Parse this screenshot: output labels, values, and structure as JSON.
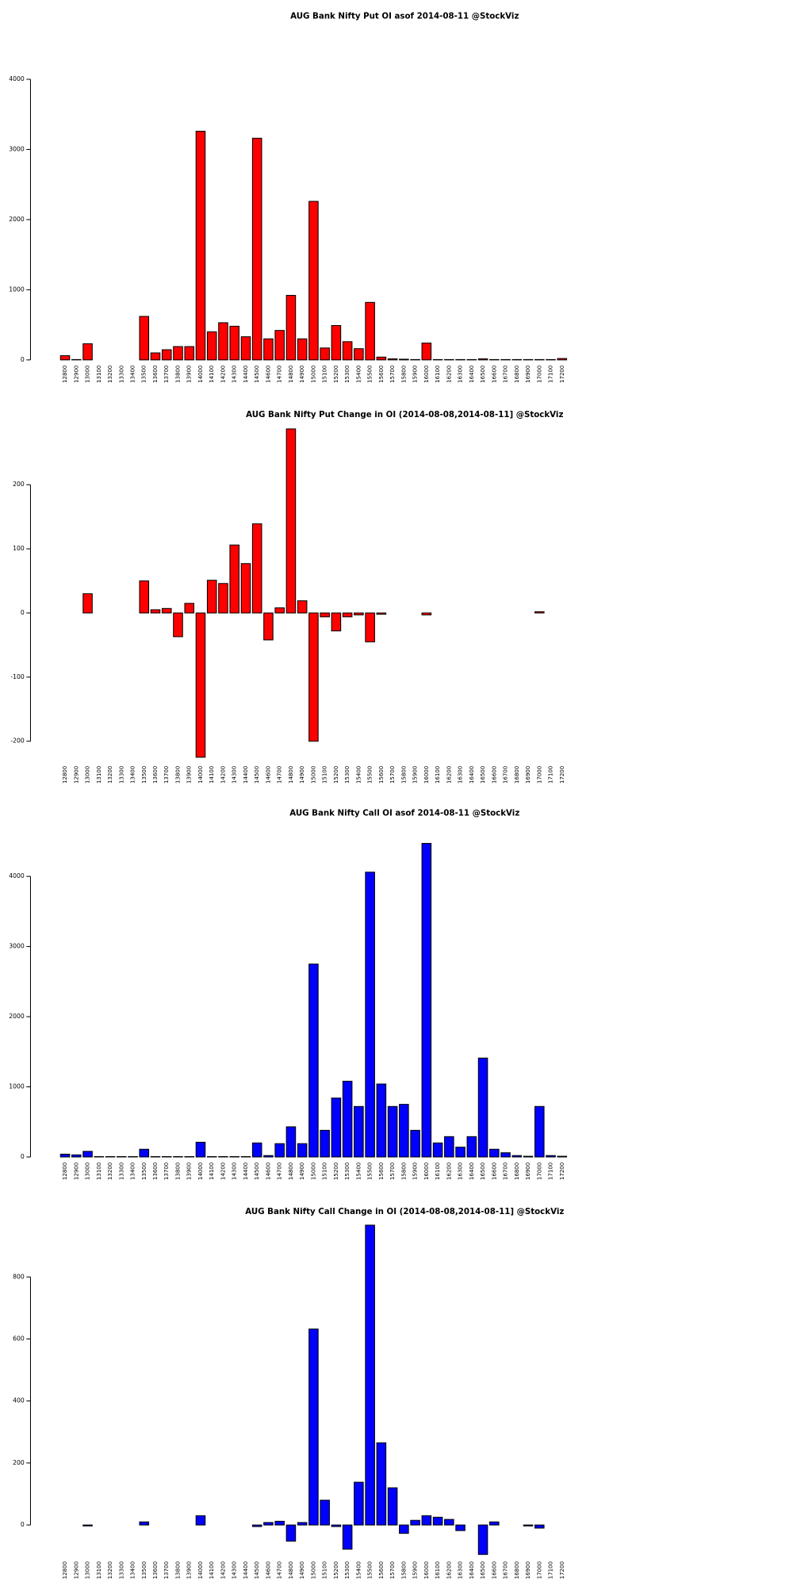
{
  "chart_data": [
    {
      "type": "bar",
      "title": "AUG Bank Nifty Put OI asof 2014-08-11 @StockViz",
      "color": "#ff0000",
      "categories": [
        "12800",
        "12900",
        "13000",
        "13100",
        "13200",
        "13300",
        "13400",
        "13500",
        "13600",
        "13700",
        "13800",
        "13900",
        "14000",
        "14100",
        "14200",
        "14300",
        "14400",
        "14500",
        "14600",
        "14700",
        "14800",
        "14900",
        "15000",
        "15100",
        "15200",
        "15300",
        "15400",
        "15500",
        "15600",
        "15700",
        "15800",
        "15900",
        "16000",
        "16100",
        "16200",
        "16300",
        "16400",
        "16500",
        "16600",
        "16700",
        "16800",
        "16900",
        "17000",
        "17100",
        "17200"
      ],
      "values": [
        60,
        5,
        230,
        0,
        0,
        0,
        0,
        620,
        100,
        145,
        190,
        190,
        3260,
        400,
        530,
        480,
        330,
        3160,
        300,
        420,
        920,
        300,
        2260,
        170,
        490,
        260,
        160,
        820,
        40,
        15,
        10,
        5,
        240,
        5,
        5,
        5,
        5,
        15,
        5,
        5,
        5,
        5,
        5,
        5,
        20
      ],
      "ylim": [
        0,
        4000
      ],
      "yticks": [
        0,
        1000,
        2000,
        3000,
        4000
      ]
    },
    {
      "type": "bar",
      "title": "AUG Bank Nifty Put Change in OI (2014-08-08,2014-08-11] @StockViz",
      "color": "#ff0000",
      "categories": [
        "12800",
        "12900",
        "13000",
        "13100",
        "13200",
        "13300",
        "13400",
        "13500",
        "13600",
        "13700",
        "13800",
        "13900",
        "14000",
        "14100",
        "14200",
        "14300",
        "14400",
        "14500",
        "14600",
        "14700",
        "14800",
        "14900",
        "15000",
        "15100",
        "15200",
        "15300",
        "15400",
        "15500",
        "15600",
        "15700",
        "15800",
        "15900",
        "16000",
        "16100",
        "16200",
        "16300",
        "16400",
        "16500",
        "16600",
        "16700",
        "16800",
        "16900",
        "17000",
        "17100",
        "17200"
      ],
      "values": [
        0,
        0,
        30,
        0,
        0,
        0,
        0,
        50,
        5,
        7,
        -37,
        15,
        -225,
        51,
        46,
        106,
        77,
        139,
        -42,
        8,
        287,
        19,
        -200,
        -6,
        -28,
        -6,
        -3,
        -45,
        -2,
        0,
        0,
        0,
        -3,
        0,
        0,
        0,
        0,
        0,
        0,
        0,
        0,
        0,
        2,
        0,
        0
      ],
      "ylim": [
        -230,
        290
      ],
      "yticks": [
        -200,
        -100,
        0,
        100,
        200
      ]
    },
    {
      "type": "bar",
      "title": "AUG Bank Nifty Call OI asof 2014-08-11 @StockViz",
      "color": "#0000ff",
      "categories": [
        "12800",
        "12900",
        "13000",
        "13100",
        "13200",
        "13300",
        "13400",
        "13500",
        "13600",
        "13700",
        "13800",
        "13900",
        "14000",
        "14100",
        "14200",
        "14300",
        "14400",
        "14500",
        "14600",
        "14700",
        "14800",
        "14900",
        "15000",
        "15100",
        "15200",
        "15300",
        "15400",
        "15500",
        "15600",
        "15700",
        "15800",
        "15900",
        "16000",
        "16100",
        "16200",
        "16300",
        "16400",
        "16500",
        "16600",
        "16700",
        "16800",
        "16900",
        "17000",
        "17100",
        "17200"
      ],
      "values": [
        40,
        30,
        80,
        5,
        5,
        5,
        5,
        110,
        5,
        5,
        5,
        5,
        210,
        5,
        5,
        5,
        5,
        200,
        20,
        190,
        430,
        190,
        2750,
        380,
        840,
        1080,
        720,
        4060,
        1040,
        720,
        750,
        380,
        4470,
        200,
        290,
        140,
        290,
        1410,
        110,
        60,
        20,
        10,
        720,
        20,
        10
      ],
      "ylim": [
        0,
        4500
      ],
      "yticks": [
        0,
        1000,
        2000,
        3000,
        4000
      ]
    },
    {
      "type": "bar",
      "title": "AUG Bank Nifty Call Change in OI (2014-08-08,2014-08-11] @StockViz",
      "color": "#0000ff",
      "categories": [
        "12800",
        "12900",
        "13000",
        "13100",
        "13200",
        "13300",
        "13400",
        "13500",
        "13600",
        "13700",
        "13800",
        "13900",
        "14000",
        "14100",
        "14200",
        "14300",
        "14400",
        "14500",
        "14600",
        "14700",
        "14800",
        "14900",
        "15000",
        "15100",
        "15200",
        "15300",
        "15400",
        "15500",
        "15600",
        "15700",
        "15800",
        "15900",
        "16000",
        "16100",
        "16200",
        "16300",
        "16400",
        "16500",
        "16600",
        "16700",
        "16800",
        "16900",
        "17000",
        "17100",
        "17200"
      ],
      "values": [
        0,
        0,
        -3,
        0,
        0,
        0,
        0,
        10,
        0,
        0,
        0,
        0,
        30,
        0,
        0,
        0,
        0,
        -5,
        8,
        12,
        -52,
        8,
        632,
        80,
        -5,
        -78,
        138,
        967,
        265,
        120,
        -27,
        15,
        30,
        25,
        18,
        -18,
        0,
        -95,
        10,
        0,
        0,
        -3,
        -10,
        0,
        0
      ],
      "ylim": [
        -100,
        1000
      ],
      "yticks": [
        0,
        200,
        400,
        600,
        800
      ]
    }
  ]
}
